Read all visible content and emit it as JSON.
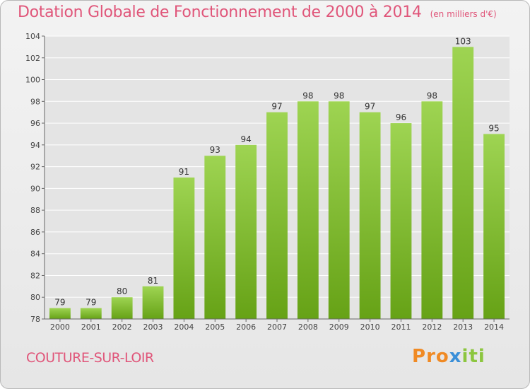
{
  "header": {
    "title": "Dotation Globale de Fonctionnement de 2000 à 2014",
    "unit": "(en milliers d'€)"
  },
  "footer": {
    "commune": "COUTURE-SUR-LOIR",
    "logo": "Proxiti"
  },
  "colors": {
    "bar_light": "#9ed452",
    "bar_dark": "#66a216",
    "title": "#e0567a",
    "grid": "#ffffff",
    "axis_text": "#444444"
  },
  "chart_data": {
    "type": "bar",
    "title": "Dotation Globale de Fonctionnement de 2000 à 2014",
    "subtitle": "(en milliers d'€)",
    "xlabel": "",
    "ylabel": "",
    "categories": [
      "2000",
      "2001",
      "2002",
      "2003",
      "2004",
      "2005",
      "2006",
      "2007",
      "2008",
      "2009",
      "2010",
      "2011",
      "2012",
      "2013",
      "2014"
    ],
    "values": [
      79,
      79,
      80,
      81,
      91,
      93,
      94,
      97,
      98,
      98,
      97,
      96,
      98,
      103,
      95
    ],
    "data_labels": [
      "79",
      "79",
      "80",
      "81",
      "91",
      "93",
      "94",
      "97",
      "98",
      "98",
      "97",
      "96",
      "98",
      "103",
      "95"
    ],
    "ylim": [
      78,
      104
    ],
    "yticks": [
      78,
      80,
      82,
      84,
      86,
      88,
      90,
      92,
      94,
      96,
      98,
      100,
      102,
      104
    ],
    "grid": true,
    "legend": "none"
  }
}
